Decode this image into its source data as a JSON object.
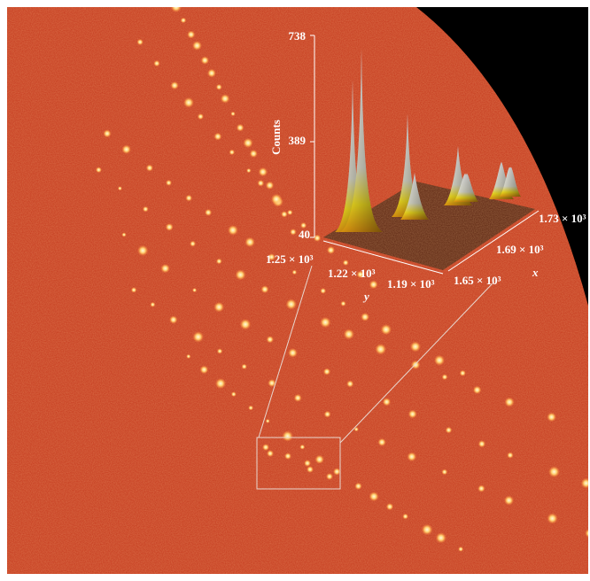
{
  "inset": {
    "z_axis": {
      "label": "Counts",
      "ticks": [
        "738",
        "389",
        "40"
      ]
    },
    "y_axis": {
      "label": "y",
      "ticks": [
        "1.25 × 10³",
        "1.22 × 10³",
        "1.19 × 10³"
      ]
    },
    "x_axis": {
      "label": "x",
      "ticks": [
        "1.65 × 10³",
        "1.69 × 10³",
        "1.73 × 10³"
      ]
    }
  }
}
